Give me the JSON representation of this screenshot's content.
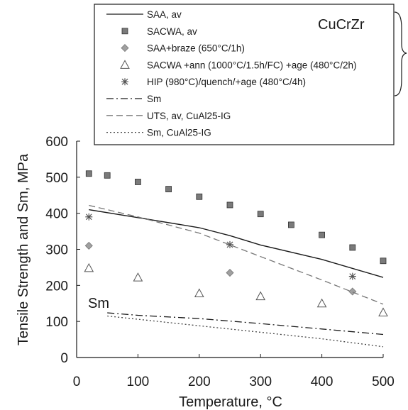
{
  "chart_data": {
    "type": "scatter",
    "xlabel": "Temperature, °C",
    "ylabel": "Tensile Strength and Sm, MPa",
    "xlim": [
      0,
      500
    ],
    "ylim": [
      0,
      600
    ],
    "xticks": [
      "0",
      "100",
      "200",
      "300",
      "400",
      "500"
    ],
    "yticks": [
      "0",
      "100",
      "200",
      "300",
      "400",
      "500",
      "600"
    ],
    "legend_placement": "top",
    "grid": false,
    "annotations": [
      {
        "text": "CuCrZr",
        "x": 375,
        "y": 650
      },
      {
        "text": "Sm",
        "x": 20,
        "y": 140
      }
    ],
    "series": [
      {
        "name": "SAA, av",
        "kind": "line",
        "style": "solid",
        "color": "#1a1a1a",
        "points": [
          [
            20,
            410
          ],
          [
            100,
            388
          ],
          [
            200,
            360
          ],
          [
            250,
            338
          ],
          [
            300,
            312
          ],
          [
            400,
            272
          ],
          [
            500,
            222
          ]
        ]
      },
      {
        "name": "SACWA, av",
        "kind": "marker",
        "marker": "square",
        "color": "#7a7a7a",
        "points": [
          [
            20,
            510
          ],
          [
            50,
            505
          ],
          [
            100,
            487
          ],
          [
            150,
            467
          ],
          [
            200,
            446
          ],
          [
            250,
            423
          ],
          [
            300,
            398
          ],
          [
            350,
            368
          ],
          [
            400,
            340
          ],
          [
            450,
            305
          ],
          [
            500,
            268
          ]
        ]
      },
      {
        "name": "SAA+braze (650°C/1h)",
        "kind": "marker",
        "marker": "diamond",
        "color": "#a0a0a0",
        "points": [
          [
            20,
            310
          ],
          [
            250,
            235
          ],
          [
            450,
            183
          ]
        ]
      },
      {
        "name": "SACWA +ann (1000°C/1.5h/FC) +age (480°C/2h)",
        "kind": "marker",
        "marker": "triangle",
        "color": "#555555",
        "points": [
          [
            20,
            248
          ],
          [
            100,
            222
          ],
          [
            200,
            178
          ],
          [
            300,
            170
          ],
          [
            400,
            150
          ],
          [
            500,
            125
          ]
        ]
      },
      {
        "name": "HIP (980°C)/quench/+age (480°C/4h)",
        "kind": "marker",
        "marker": "asterisk",
        "color": "#555555",
        "points": [
          [
            20,
            390
          ],
          [
            250,
            313
          ],
          [
            450,
            225
          ]
        ]
      },
      {
        "name": "Sm",
        "kind": "line",
        "style": "dashdot",
        "color": "#1a1a1a",
        "points": [
          [
            50,
            124
          ],
          [
            100,
            117
          ],
          [
            200,
            108
          ],
          [
            300,
            94
          ],
          [
            400,
            79
          ],
          [
            500,
            64
          ]
        ]
      },
      {
        "name": "UTS, av, CuAl25-IG",
        "kind": "line",
        "style": "dashed",
        "color": "#777777",
        "points": [
          [
            20,
            422
          ],
          [
            100,
            390
          ],
          [
            200,
            345
          ],
          [
            300,
            280
          ],
          [
            400,
            215
          ],
          [
            500,
            148
          ]
        ]
      },
      {
        "name": "Sm, CuAl25-IG",
        "kind": "line",
        "style": "dotted",
        "color": "#444444",
        "points": [
          [
            50,
            115
          ],
          [
            100,
            106
          ],
          [
            200,
            88
          ],
          [
            300,
            70
          ],
          [
            400,
            52
          ],
          [
            500,
            30
          ]
        ]
      }
    ]
  }
}
